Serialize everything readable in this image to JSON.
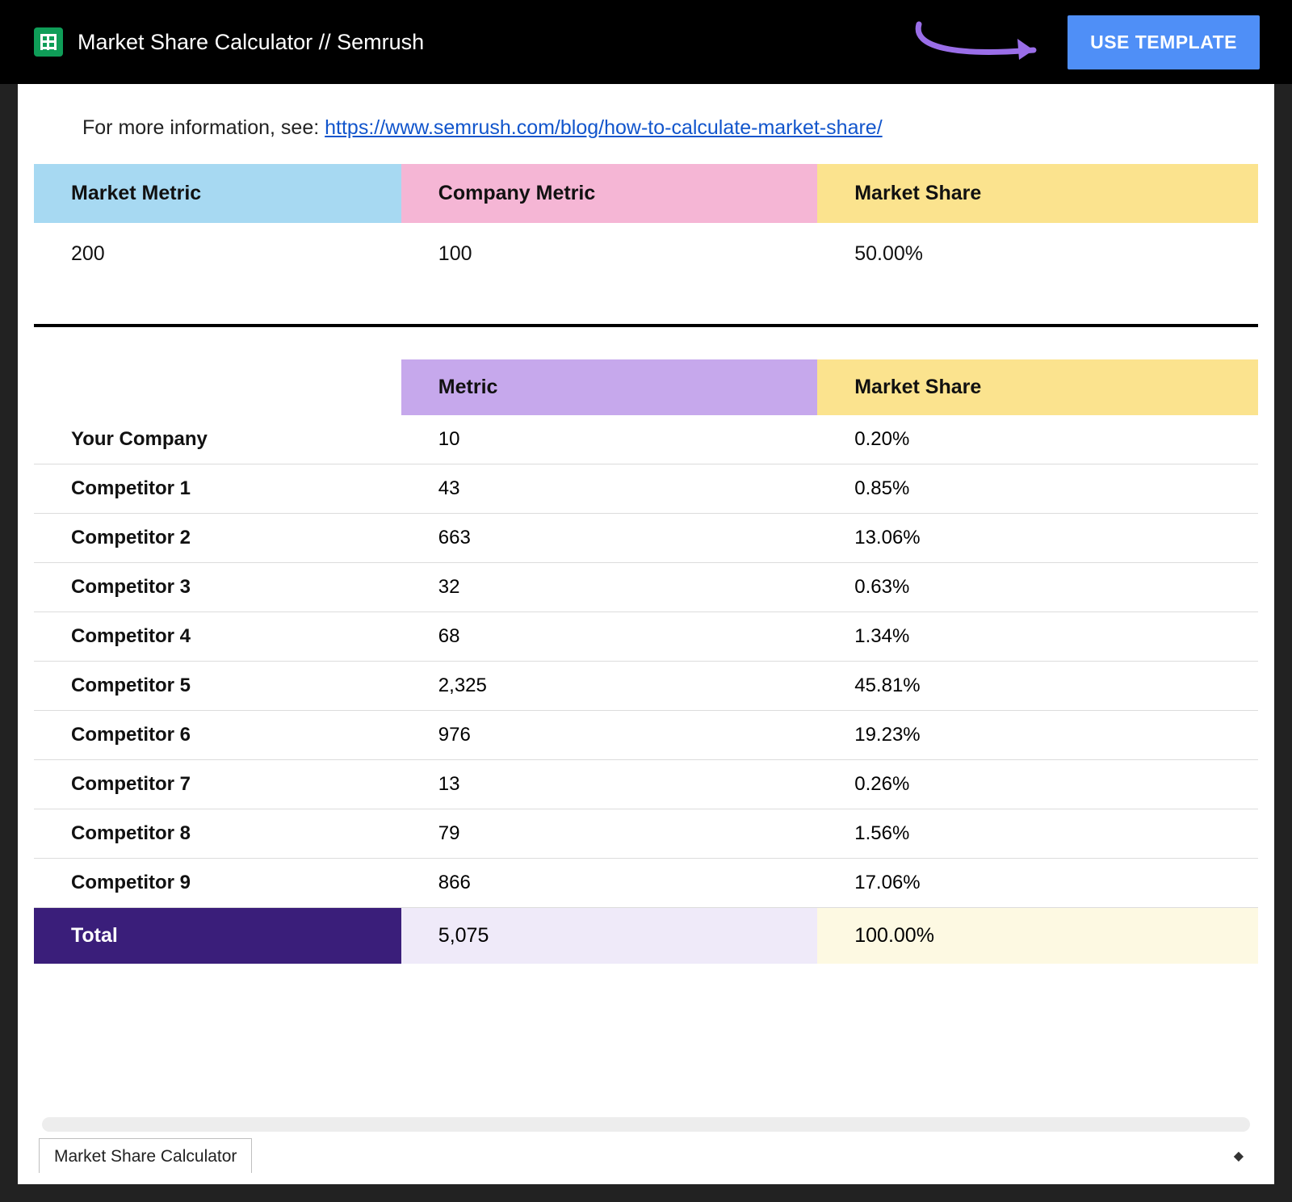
{
  "header": {
    "doc_title": "Market Share Calculator // Semrush",
    "use_template_label": "USE TEMPLATE"
  },
  "info": {
    "prefix": "For more information, see: ",
    "link_text": "https://www.semrush.com/blog/how-to-calculate-market-share/"
  },
  "summary_table": {
    "columns": [
      "Market Metric",
      "Company Metric",
      "Market Share"
    ],
    "header_colors": [
      "#a7d9f2",
      "#f5b6d5",
      "#fbe38e"
    ],
    "row": {
      "market": "200",
      "company": "100",
      "share": "50.00%"
    }
  },
  "comp_table": {
    "columns": [
      "",
      "Metric",
      "Market Share"
    ],
    "header_colors": [
      "#ffffff",
      "#c6a8ec",
      "#fbe38e"
    ],
    "rows": [
      {
        "label": "Your Company",
        "metric": "10",
        "share": "0.20%"
      },
      {
        "label": "Competitor 1",
        "metric": "43",
        "share": "0.85%"
      },
      {
        "label": "Competitor 2",
        "metric": "663",
        "share": "13.06%"
      },
      {
        "label": "Competitor 3",
        "metric": "32",
        "share": "0.63%"
      },
      {
        "label": "Competitor 4",
        "metric": "68",
        "share": "1.34%"
      },
      {
        "label": "Competitor 5",
        "metric": "2,325",
        "share": "45.81%"
      },
      {
        "label": "Competitor 6",
        "metric": "976",
        "share": "19.23%"
      },
      {
        "label": "Competitor 7",
        "metric": "13",
        "share": "0.26%"
      },
      {
        "label": "Competitor 8",
        "metric": "79",
        "share": "1.56%"
      },
      {
        "label": "Competitor 9",
        "metric": "866",
        "share": "17.06%"
      }
    ],
    "total": {
      "label": "Total",
      "metric": "5,075",
      "share": "100.00%",
      "label_bg": "#3a1e7a",
      "metric_bg": "#efeaf9",
      "share_bg": "#fdf9e2"
    }
  },
  "footer": {
    "tab_label": "Market Share Calculator"
  },
  "annotation": {
    "arrow_color": "#9a6ee8"
  }
}
